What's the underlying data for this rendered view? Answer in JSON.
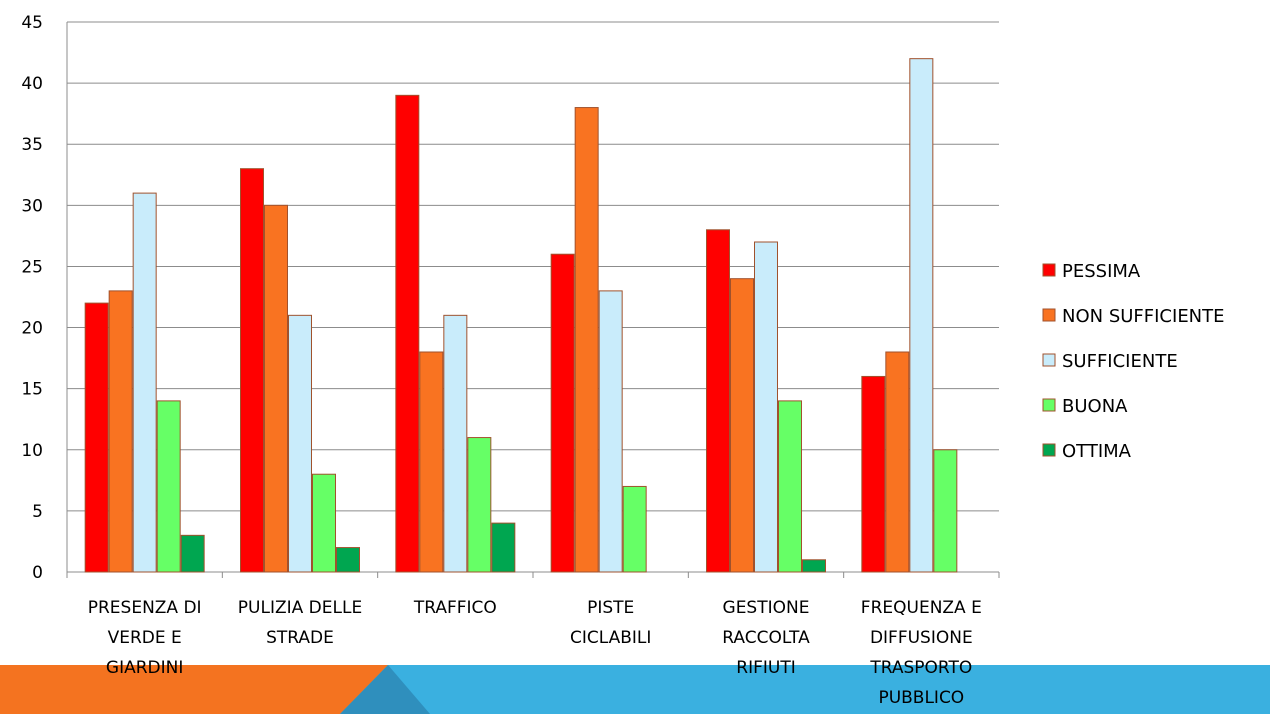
{
  "chart_data": {
    "type": "bar",
    "categories": [
      [
        "PRESENZA DI",
        "VERDE E",
        "GIARDINI"
      ],
      [
        "PULIZIA DELLE",
        "STRADE"
      ],
      [
        "TRAFFICO"
      ],
      [
        "PISTE",
        "CICLABILI"
      ],
      [
        "GESTIONE",
        "RACCOLTA",
        "RIFIUTI"
      ],
      [
        "FREQUENZA E",
        "DIFFUSIONE",
        "TRASPORTO",
        "PUBBLICO"
      ]
    ],
    "series": [
      {
        "name": "PESSIMA",
        "color": "#ff0000",
        "values": [
          22,
          33,
          39,
          26,
          28,
          16
        ]
      },
      {
        "name": "NON SUFFICIENTE",
        "color": "#f97321",
        "values": [
          23,
          30,
          18,
          38,
          24,
          18
        ]
      },
      {
        "name": "SUFFICIENTE",
        "color": "#c9ecfb",
        "values": [
          31,
          21,
          21,
          23,
          27,
          42
        ]
      },
      {
        "name": "BUONA",
        "color": "#66ff66",
        "values": [
          14,
          8,
          11,
          7,
          14,
          10
        ]
      },
      {
        "name": "OTTIMA",
        "color": "#00a650",
        "values": [
          3,
          2,
          4,
          0,
          1,
          0
        ]
      }
    ],
    "ylim": [
      0,
      45
    ],
    "yticks": [
      0,
      5,
      10,
      15,
      20,
      25,
      30,
      35,
      40,
      45
    ],
    "grid": true,
    "legend_position": "right",
    "bar_edge_color": "#a0522d"
  },
  "footer_band": {
    "left_color": "#f47320",
    "right_color": "#3ab0e0",
    "seam_color": "#2f8fbd"
  }
}
